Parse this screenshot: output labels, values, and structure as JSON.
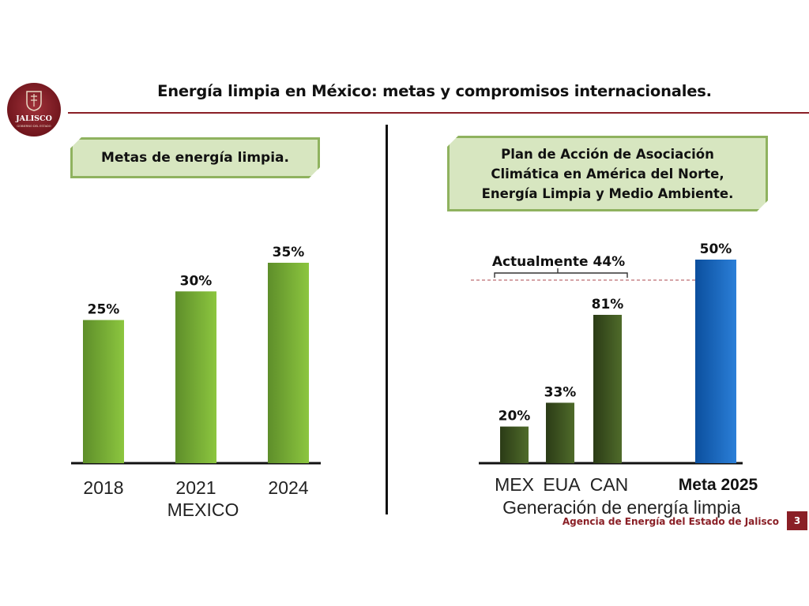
{
  "header": {
    "title": "Energía limpia en México: metas y compromisos internacionales."
  },
  "logo": {
    "text": "JALISCO",
    "subtext": "GOBIERNO DEL ESTADO"
  },
  "left_panel": {
    "callout": "Metas de energía limpia."
  },
  "right_panel": {
    "callout_lines": [
      "Plan de Acción de Asociación",
      "Climática en América del Norte,",
      "Energía Limpia y Medio Ambiente."
    ],
    "annotation": "Actualmente 44%"
  },
  "footer": {
    "agency": "Agencia de Energía del Estado de Jalisco",
    "page": "3"
  },
  "colors": {
    "brand": "#8a1f26",
    "green_light": "#8cc63f",
    "green_dark": "#5e8e2a",
    "olive_light": "#4f6b2a",
    "olive_dark": "#2b3b16",
    "blue_light": "#2b7fd8",
    "blue_dark": "#0b4f9e",
    "callout_fill": "#d7e6c0",
    "callout_border": "#8fb25f"
  },
  "chart_data": [
    {
      "type": "bar",
      "categories": [
        "2018",
        "2021",
        "2024"
      ],
      "values": [
        25,
        30,
        35
      ],
      "value_labels": [
        "25%",
        "30%",
        "35%"
      ],
      "xlabel": "MEXICO",
      "ylim": [
        0,
        35
      ],
      "grid": false
    },
    {
      "type": "bar",
      "categories": [
        "MEX",
        "EUA",
        "CAN",
        "Meta 2025"
      ],
      "values": [
        20,
        33,
        81,
        50
      ],
      "value_labels": [
        "20%",
        "33%",
        "81%",
        "50%"
      ],
      "xlabel": "Generación de energía limpia",
      "reference_line": {
        "value": 44,
        "label": "Actualmente 44%"
      },
      "grid": false
    }
  ]
}
